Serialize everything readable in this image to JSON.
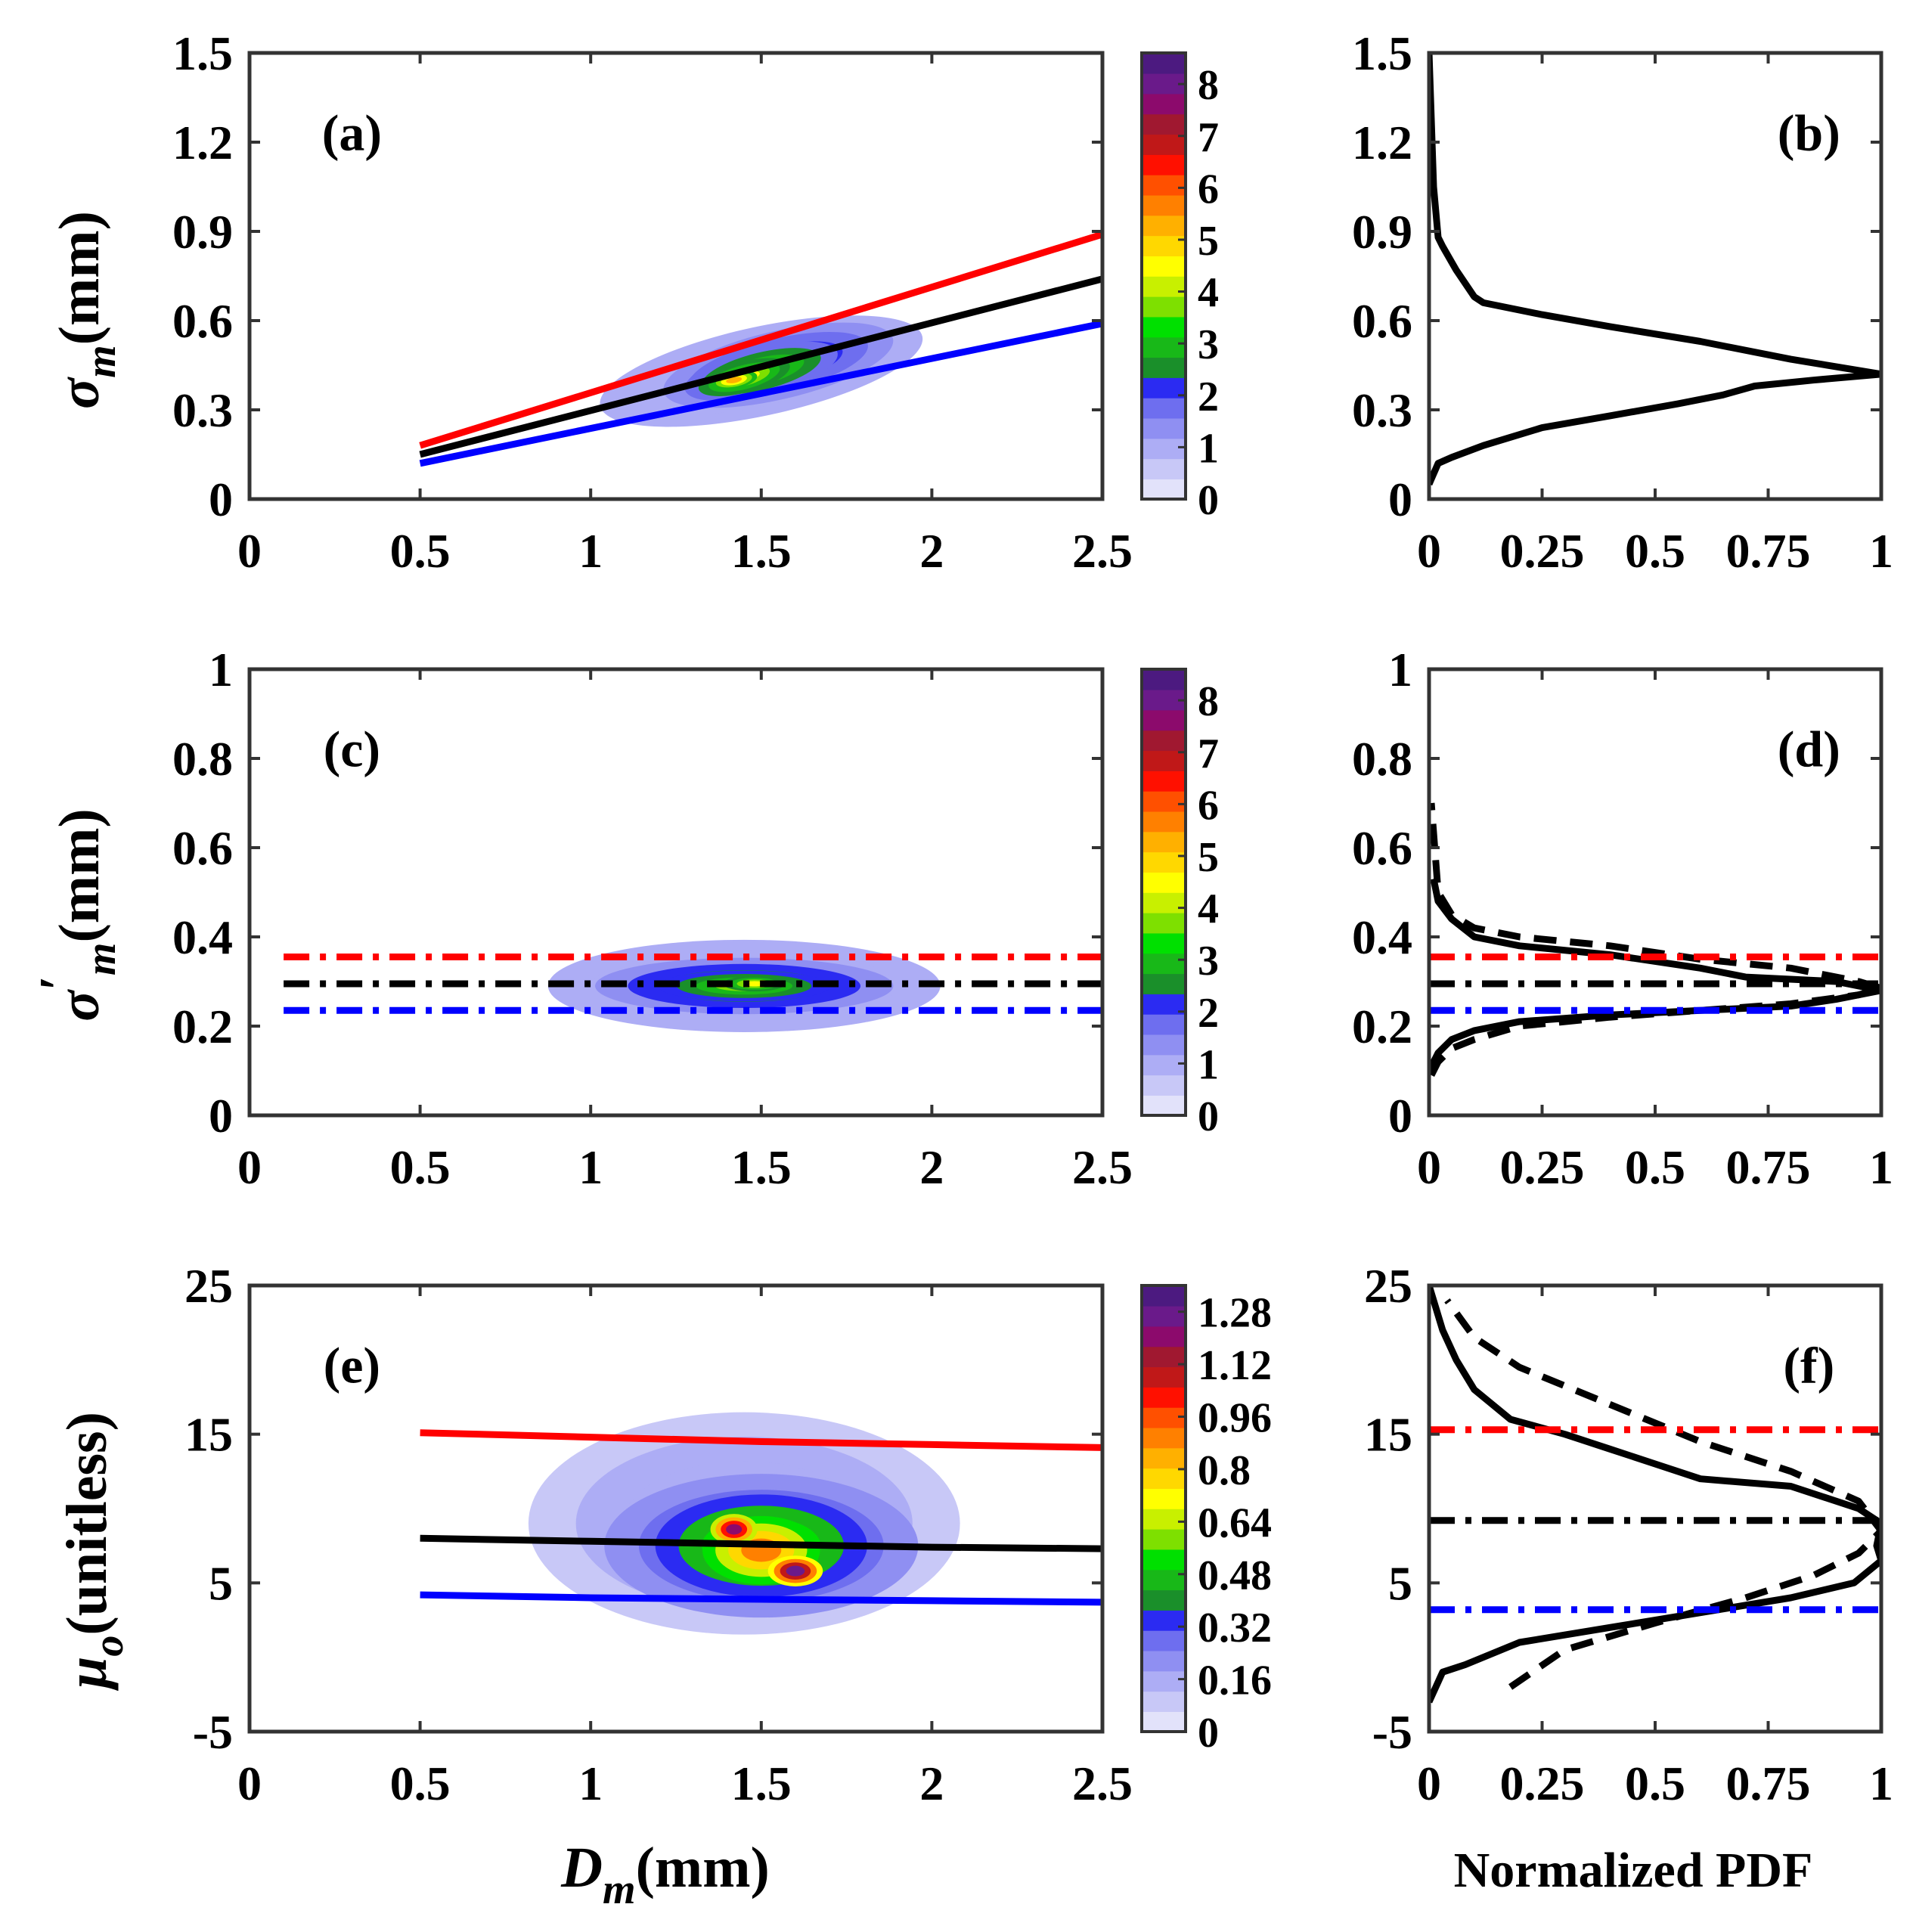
{
  "figure": {
    "xlabel_main": "D",
    "xlabel_sub": "m",
    "xlabel_unit": "(mm)",
    "xlabel_pdf": "Normalized PDF"
  },
  "chart_data": [
    {
      "id": "a",
      "type": "heatmap",
      "panel_label": "(a)",
      "ylabel_symbol": "σ",
      "ylabel_sub": "m",
      "ylabel_unit": "(mm)",
      "xlim": [
        0,
        2.5
      ],
      "ylim": [
        0,
        1.5
      ],
      "xticks": [
        "0",
        "0.5",
        "1",
        "1.5",
        "2",
        "2.5"
      ],
      "yticks": [
        "0",
        "0.3",
        "0.6",
        "0.9",
        "1.2",
        "1.5"
      ],
      "colorbar": {
        "ticks": [
          "0",
          "1",
          "2",
          "3",
          "4",
          "5",
          "6",
          "7",
          "8"
        ],
        "max": 8.6
      },
      "density_blobs": [
        {
          "x": 1.5,
          "y": 0.43,
          "sx": 0.42,
          "sy": 0.13,
          "rho": 0.8,
          "level": 1.6
        },
        {
          "x": 1.55,
          "y": 0.45,
          "sx": 0.3,
          "sy": 0.1,
          "rho": 0.8,
          "level": 2.6
        },
        {
          "x": 1.5,
          "y": 0.43,
          "sx": 0.2,
          "sy": 0.07,
          "rho": 0.8,
          "level": 3.4
        },
        {
          "x": 1.45,
          "y": 0.41,
          "sx": 0.12,
          "sy": 0.045,
          "rho": 0.8,
          "level": 4.4
        },
        {
          "x": 1.42,
          "y": 0.4,
          "sx": 0.06,
          "sy": 0.025,
          "rho": 0.5,
          "level": 5.2
        }
      ],
      "series": [
        {
          "name": "upper",
          "color": "#ff0000",
          "style": "solid",
          "x": [
            0.5,
            2.5
          ],
          "y": [
            0.18,
            0.89
          ]
        },
        {
          "name": "mean",
          "color": "#000000",
          "style": "solid",
          "x": [
            0.5,
            2.5
          ],
          "y": [
            0.15,
            0.74
          ]
        },
        {
          "name": "lower",
          "color": "#0000ff",
          "style": "solid",
          "x": [
            0.5,
            2.5
          ],
          "y": [
            0.12,
            0.59
          ]
        }
      ]
    },
    {
      "id": "b",
      "type": "line",
      "panel_label": "(b)",
      "xlim": [
        0,
        1
      ],
      "ylim": [
        0,
        1.5
      ],
      "xticks": [
        "0",
        "0.25",
        "0.5",
        "0.75",
        "1"
      ],
      "yticks": [
        "0",
        "0.3",
        "0.6",
        "0.9",
        "1.2",
        "1.5"
      ],
      "series": [
        {
          "name": "pdf",
          "color": "#000000",
          "style": "solid",
          "x": [
            0,
            0.02,
            0.05,
            0.12,
            0.25,
            0.4,
            0.55,
            0.65,
            0.72,
            0.85,
            1.0,
            0.8,
            0.6,
            0.4,
            0.25,
            0.12,
            0.1,
            0.06,
            0.03,
            0.02,
            0.01,
            0.0
          ],
          "y": [
            0.05,
            0.12,
            0.14,
            0.18,
            0.24,
            0.28,
            0.32,
            0.35,
            0.38,
            0.4,
            0.42,
            0.47,
            0.53,
            0.58,
            0.62,
            0.66,
            0.68,
            0.77,
            0.85,
            0.88,
            1.05,
            1.5
          ]
        }
      ]
    },
    {
      "id": "c",
      "type": "heatmap",
      "panel_label": "(c)",
      "ylabel_symbol": "σ",
      "ylabel_prime": "′",
      "ylabel_sub": "m",
      "ylabel_unit": "(mm)",
      "xlim": [
        0,
        2.5
      ],
      "ylim": [
        0,
        1
      ],
      "xticks": [
        "0",
        "0.5",
        "1",
        "1.5",
        "2",
        "2.5"
      ],
      "yticks": [
        "0",
        "0.2",
        "0.4",
        "0.6",
        "0.8",
        "1"
      ],
      "colorbar": {
        "ticks": [
          "0",
          "1",
          "2",
          "3",
          "4",
          "5",
          "6",
          "7",
          "8"
        ],
        "max": 8.6
      },
      "density_blobs": [
        {
          "x": 1.45,
          "y": 0.29,
          "sx": 0.5,
          "sy": 0.09,
          "rho": 0,
          "level": 1.6
        },
        {
          "x": 1.45,
          "y": 0.29,
          "sx": 0.38,
          "sy": 0.055,
          "rho": 0,
          "level": 2.8
        },
        {
          "x": 1.45,
          "y": 0.29,
          "sx": 0.22,
          "sy": 0.03,
          "rho": 0,
          "level": 3.6
        },
        {
          "x": 1.48,
          "y": 0.295,
          "sx": 0.08,
          "sy": 0.015,
          "rho": 0,
          "level": 4.4
        }
      ],
      "series": [
        {
          "name": "upper",
          "color": "#ff0000",
          "style": "dashdot",
          "x": [
            0.1,
            2.5
          ],
          "y": [
            0.355,
            0.355
          ]
        },
        {
          "name": "mean",
          "color": "#000000",
          "style": "dashdot",
          "x": [
            0.1,
            2.5
          ],
          "y": [
            0.295,
            0.295
          ]
        },
        {
          "name": "lower",
          "color": "#0000ff",
          "style": "dashdot",
          "x": [
            0.1,
            2.5
          ],
          "y": [
            0.235,
            0.235
          ]
        }
      ]
    },
    {
      "id": "d",
      "type": "line",
      "panel_label": "(d)",
      "xlim": [
        0,
        1
      ],
      "ylim": [
        0,
        1
      ],
      "xticks": [
        "0",
        "0.25",
        "0.5",
        "0.75",
        "1"
      ],
      "yticks": [
        "0",
        "0.2",
        "0.4",
        "0.6",
        "0.8",
        "1"
      ],
      "series": [
        {
          "name": "pdf",
          "color": "#000000",
          "style": "solid",
          "x": [
            0,
            0.02,
            0.05,
            0.1,
            0.2,
            0.4,
            0.6,
            0.8,
            0.9,
            1.0,
            0.9,
            0.7,
            0.6,
            0.4,
            0.2,
            0.1,
            0.05,
            0.02,
            0.01
          ],
          "y": [
            0.1,
            0.14,
            0.17,
            0.19,
            0.21,
            0.225,
            0.235,
            0.245,
            0.26,
            0.28,
            0.3,
            0.31,
            0.33,
            0.36,
            0.38,
            0.4,
            0.44,
            0.48,
            0.53
          ]
        },
        {
          "name": "fit",
          "color": "#000000",
          "style": "dashed",
          "x": [
            0.005,
            0.02,
            0.05,
            0.1,
            0.2,
            0.4,
            0.6,
            0.8,
            0.95,
            1.0,
            0.95,
            0.8,
            0.6,
            0.4,
            0.2,
            0.1,
            0.05,
            0.02,
            0.005
          ],
          "y": [
            0.09,
            0.12,
            0.15,
            0.17,
            0.2,
            0.22,
            0.235,
            0.25,
            0.27,
            0.285,
            0.3,
            0.33,
            0.35,
            0.38,
            0.4,
            0.42,
            0.45,
            0.5,
            0.7
          ]
        },
        {
          "name": "upper",
          "color": "#ff0000",
          "style": "dashdot",
          "x": [
            0,
            1
          ],
          "y": [
            0.355,
            0.355
          ]
        },
        {
          "name": "mean",
          "color": "#000000",
          "style": "dashdot",
          "x": [
            0,
            1
          ],
          "y": [
            0.295,
            0.295
          ]
        },
        {
          "name": "lower",
          "color": "#0000ff",
          "style": "dashdot",
          "x": [
            0,
            1
          ],
          "y": [
            0.235,
            0.235
          ]
        }
      ]
    },
    {
      "id": "e",
      "type": "heatmap",
      "panel_label": "(e)",
      "ylabel_symbol": "μ",
      "ylabel_sub": "o",
      "ylabel_unit": "(unitless)",
      "xlim": [
        0,
        2.5
      ],
      "ylim": [
        -5,
        25
      ],
      "xticks": [
        "0",
        "0.5",
        "1",
        "1.5",
        "2",
        "2.5"
      ],
      "yticks": [
        "-5",
        "5",
        "15",
        "25"
      ],
      "ytick_values": [
        -5,
        5,
        15,
        25
      ],
      "colorbar": {
        "ticks": [
          "0",
          "0.16",
          "0.32",
          "0.48",
          "0.64",
          "0.8",
          "0.96",
          "1.12",
          "1.28"
        ],
        "max": 1.36
      },
      "density_blobs": [
        {
          "x": 1.45,
          "y": 9,
          "sx": 0.55,
          "sy": 6.5,
          "rho": 0,
          "level": 0.2
        },
        {
          "x": 1.5,
          "y": 7.5,
          "sx": 0.4,
          "sy": 4.2,
          "rho": 0,
          "level": 0.38
        },
        {
          "x": 1.5,
          "y": 7.5,
          "sx": 0.27,
          "sy": 3.0,
          "rho": 0,
          "level": 0.62
        },
        {
          "x": 1.5,
          "y": 7.2,
          "sx": 0.15,
          "sy": 2.0,
          "rho": 0,
          "level": 0.9
        },
        {
          "x": 1.42,
          "y": 8.6,
          "sx": 0.06,
          "sy": 0.9,
          "rho": 0,
          "level": 1.2
        },
        {
          "x": 1.6,
          "y": 5.8,
          "sx": 0.07,
          "sy": 0.9,
          "rho": 0,
          "level": 1.25
        }
      ],
      "series": [
        {
          "name": "upper",
          "color": "#ff0000",
          "style": "solid",
          "x": [
            0.5,
            1.0,
            1.5,
            2.0,
            2.5
          ],
          "y": [
            15.1,
            14.8,
            14.5,
            14.3,
            14.1
          ]
        },
        {
          "name": "mean",
          "color": "#000000",
          "style": "solid",
          "x": [
            0.5,
            1.0,
            1.5,
            2.0,
            2.5
          ],
          "y": [
            8.0,
            7.8,
            7.6,
            7.4,
            7.3
          ]
        },
        {
          "name": "lower",
          "color": "#0000ff",
          "style": "solid",
          "x": [
            0.5,
            1.0,
            1.5,
            2.0,
            2.5
          ],
          "y": [
            4.2,
            4.0,
            3.9,
            3.8,
            3.7
          ]
        }
      ]
    },
    {
      "id": "f",
      "type": "line",
      "panel_label": "(f)",
      "xlim": [
        0,
        1
      ],
      "ylim": [
        -5,
        25
      ],
      "xticks": [
        "0",
        "0.25",
        "0.5",
        "0.75",
        "1"
      ],
      "yticks": [
        "-5",
        "5",
        "15",
        "25"
      ],
      "ytick_values": [
        -5,
        5,
        15,
        25
      ],
      "series": [
        {
          "name": "pdf",
          "color": "#000000",
          "style": "solid",
          "x": [
            0,
            0.03,
            0.08,
            0.2,
            0.4,
            0.6,
            0.8,
            0.94,
            1.0,
            0.99,
            1.0,
            0.95,
            0.8,
            0.6,
            0.5,
            0.4,
            0.3,
            0.18,
            0.14,
            0.1,
            0.06,
            0.03,
            0.0
          ],
          "y": [
            -3,
            -1,
            -0.5,
            1,
            2,
            3,
            4,
            5,
            6.5,
            7.5,
            9,
            10,
            11.5,
            12,
            13,
            14,
            15,
            16,
            17,
            18,
            20,
            22,
            25
          ]
        },
        {
          "name": "fit",
          "color": "#000000",
          "style": "dashed",
          "x": [
            0.18,
            0.3,
            0.5,
            0.7,
            0.85,
            0.95,
            1.0,
            0.95,
            0.8,
            0.6,
            0.4,
            0.2,
            0.1,
            0.04
          ],
          "y": [
            -2,
            0.5,
            2.3,
            4,
            5.5,
            7,
            8.5,
            10.5,
            12.5,
            14.5,
            17,
            19.5,
            21.5,
            24
          ]
        },
        {
          "name": "upper",
          "color": "#ff0000",
          "style": "dashdot",
          "x": [
            0,
            1
          ],
          "y": [
            15.3,
            15.3
          ]
        },
        {
          "name": "mean",
          "color": "#000000",
          "style": "dashdot",
          "x": [
            0,
            1
          ],
          "y": [
            9.2,
            9.2
          ]
        },
        {
          "name": "lower",
          "color": "#0000ff",
          "style": "dashdot",
          "x": [
            0,
            1
          ],
          "y": [
            3.2,
            3.2
          ]
        }
      ]
    }
  ]
}
